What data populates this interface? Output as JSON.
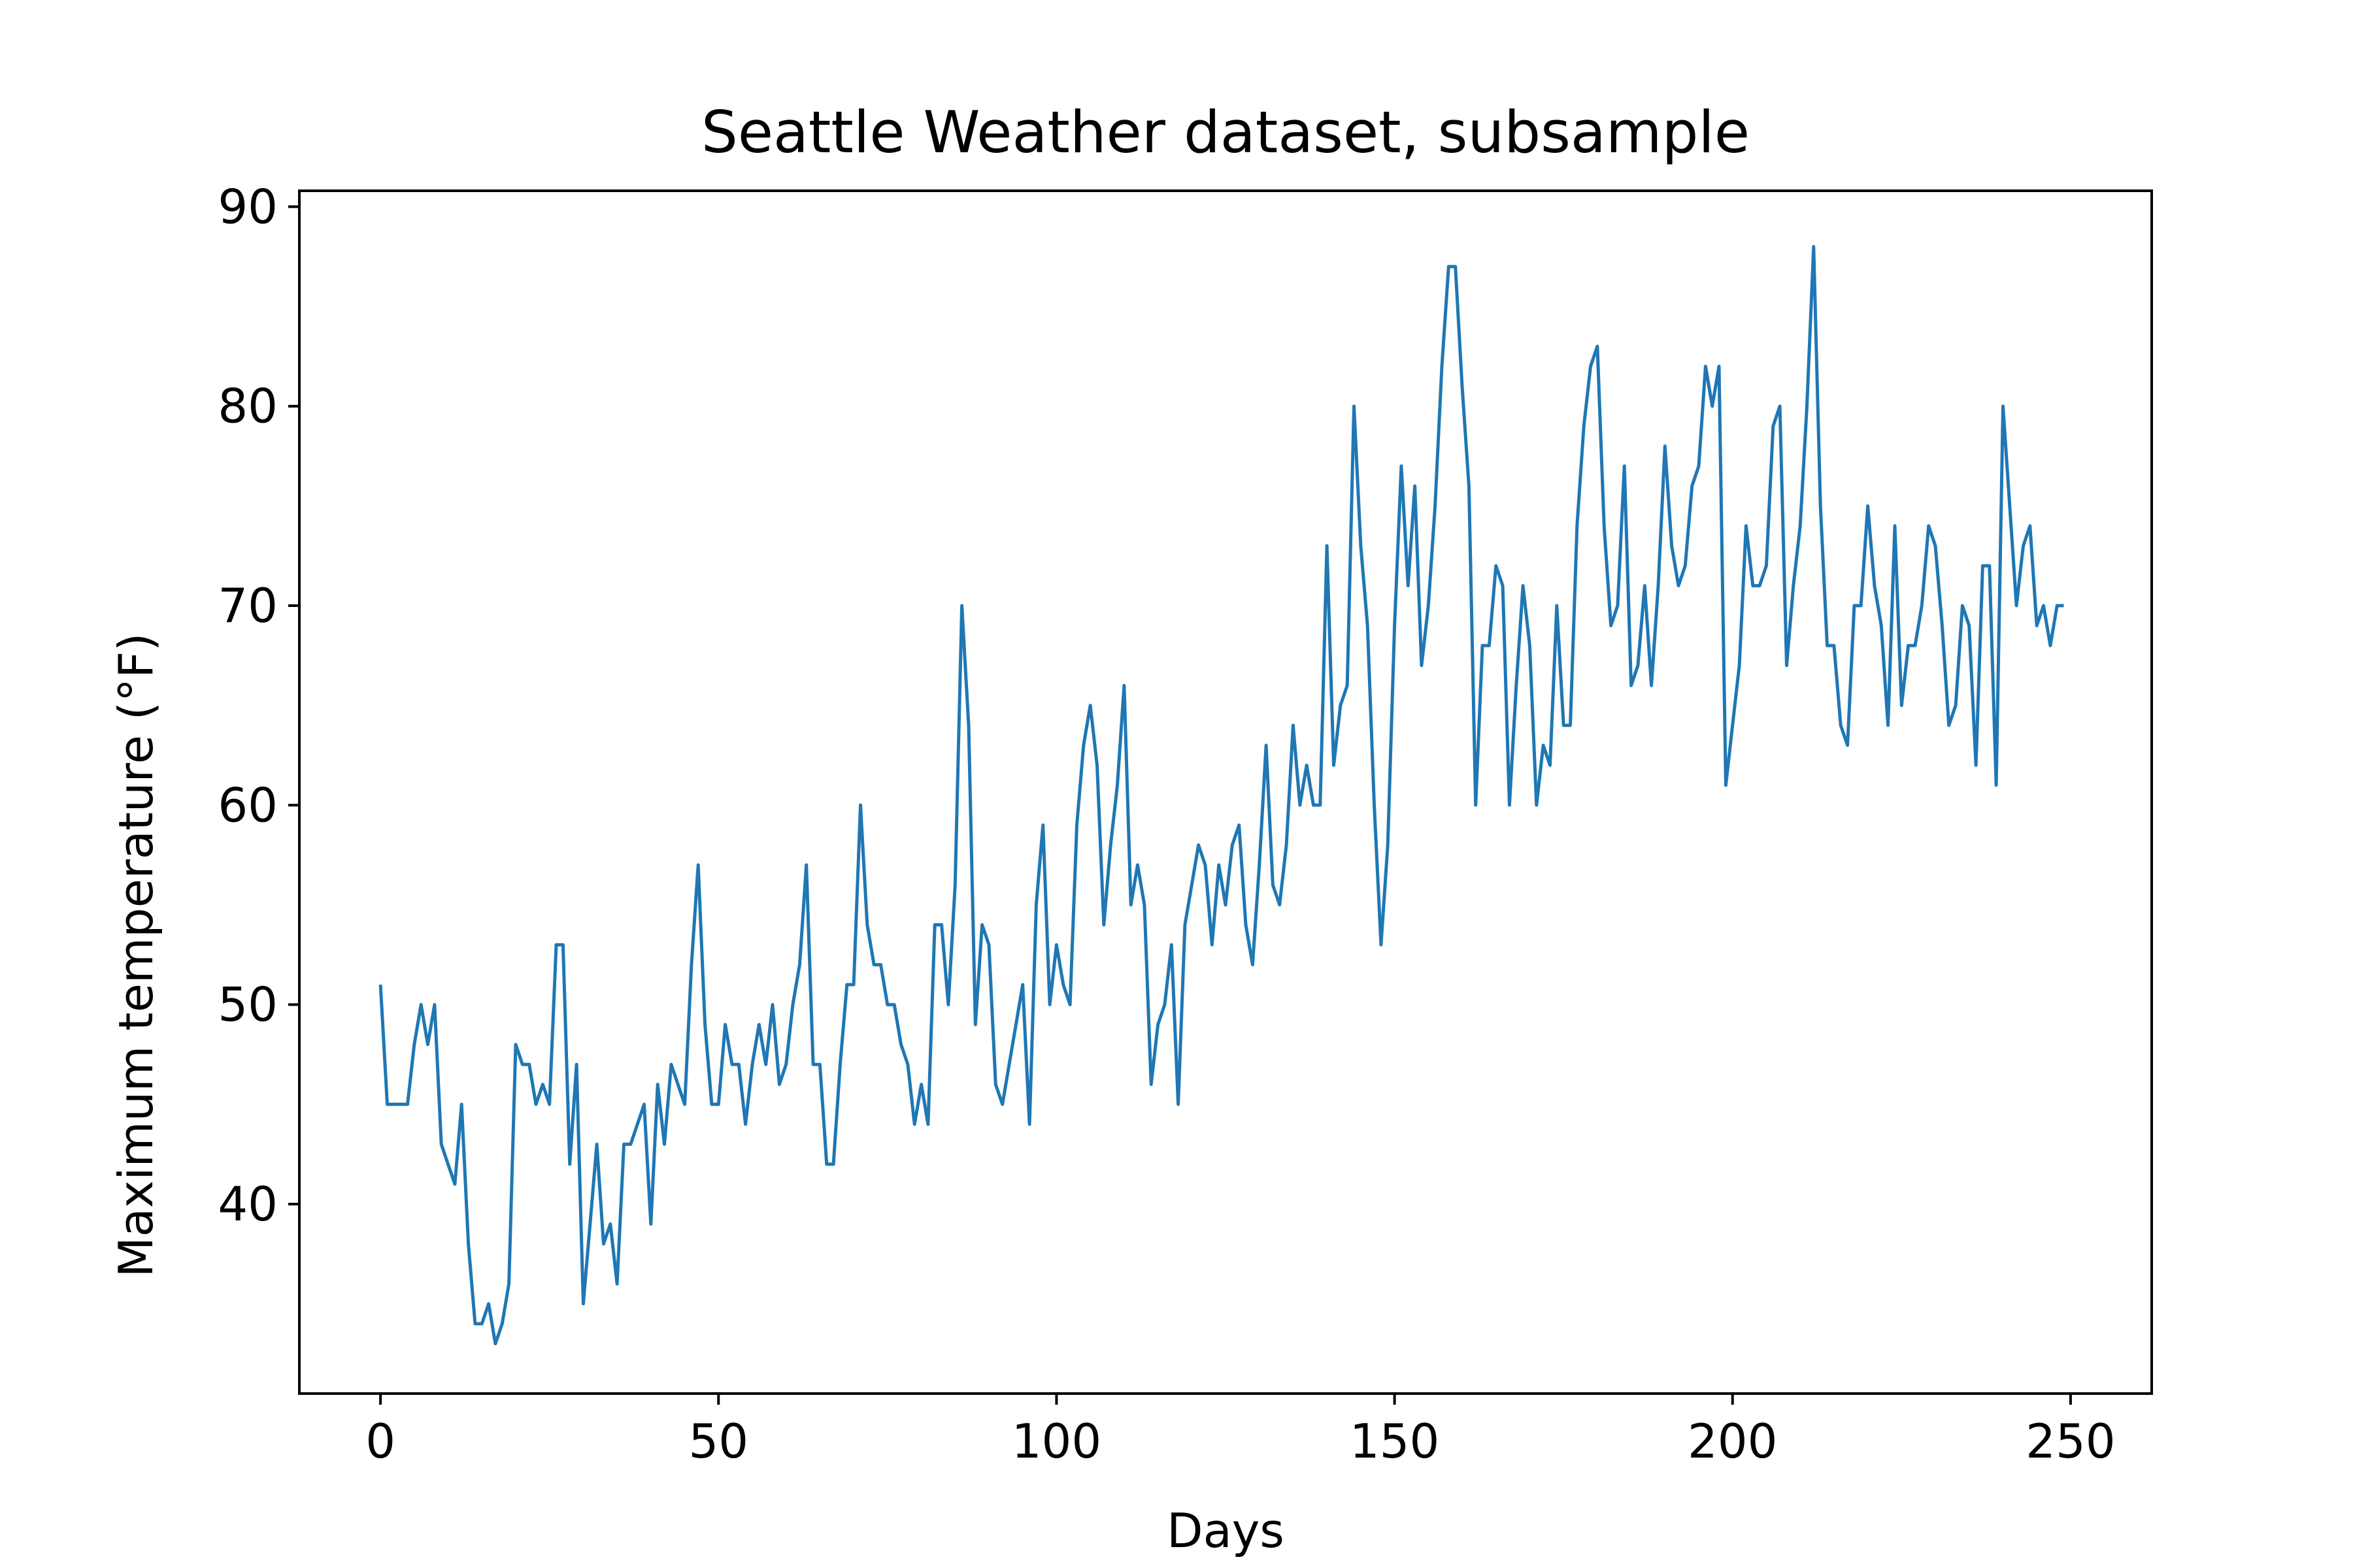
{
  "chart_data": {
    "type": "line",
    "title": "Seattle Weather dataset, subsample",
    "xlabel": "Days",
    "ylabel": "Maximum temperature (°F)",
    "xlim": [
      -12,
      262
    ],
    "ylim": [
      30.5,
      90.8
    ],
    "xticks": [
      0,
      50,
      100,
      150,
      200,
      250
    ],
    "yticks": [
      40,
      50,
      60,
      70,
      80,
      90
    ],
    "grid": false,
    "legend": "none",
    "line_color": "#1f77b4",
    "series": [
      {
        "x": [
          0,
          1,
          2,
          3,
          4,
          5,
          6,
          7,
          8,
          9,
          10,
          11,
          12,
          13,
          14,
          15,
          16,
          17,
          18,
          19,
          20,
          21,
          22,
          23,
          24,
          25,
          26,
          27,
          28,
          29,
          30,
          31,
          32,
          33,
          34,
          35,
          36,
          37,
          38,
          39,
          40,
          41,
          42,
          43,
          44,
          45,
          46,
          47,
          48,
          49,
          50,
          51,
          52,
          53,
          54,
          55,
          56,
          57,
          58,
          59,
          60,
          61,
          62,
          63,
          64,
          65,
          66,
          67,
          68,
          69,
          70,
          71,
          72,
          73,
          74,
          75,
          76,
          77,
          78,
          79,
          80,
          81,
          82,
          83,
          84,
          85,
          86,
          87,
          88,
          89,
          90,
          91,
          92,
          93,
          94,
          95,
          96,
          97,
          98,
          99,
          100,
          101,
          102,
          103,
          104,
          105,
          106,
          107,
          108,
          109,
          110,
          111,
          112,
          113,
          114,
          115,
          116,
          117,
          118,
          119,
          120,
          121,
          122,
          123,
          124,
          125,
          126,
          127,
          128,
          129,
          130,
          131,
          132,
          133,
          134,
          135,
          136,
          137,
          138,
          139,
          140,
          141,
          142,
          143,
          144,
          145,
          146,
          147,
          148,
          149,
          150,
          151,
          152,
          153,
          154,
          155,
          156,
          157,
          158,
          159,
          160,
          161,
          162,
          163,
          164,
          165,
          166,
          167,
          168,
          169,
          170,
          171,
          172,
          173,
          174,
          175,
          176,
          177,
          178,
          179,
          180,
          181,
          182,
          183,
          184,
          185,
          186,
          187,
          188,
          189,
          190,
          191,
          192,
          193,
          194,
          195,
          196,
          197,
          198,
          199,
          200,
          201,
          202,
          203,
          204,
          205,
          206,
          207,
          208,
          209,
          210,
          211,
          212,
          213,
          214,
          215,
          216,
          217,
          218,
          219,
          220,
          221,
          222,
          223,
          224,
          225,
          226,
          227,
          228,
          229,
          230,
          231,
          232,
          233,
          234,
          235,
          236,
          237,
          238,
          239,
          240,
          241,
          242,
          243,
          244,
          245,
          246,
          247,
          248,
          249
        ],
        "y": [
          51,
          45,
          45,
          45,
          45,
          48,
          50,
          48,
          50,
          43,
          42,
          41,
          45,
          38,
          34,
          34,
          35,
          33,
          34,
          36,
          48,
          47,
          47,
          45,
          46,
          45,
          53,
          53,
          42,
          47,
          35,
          39,
          43,
          38,
          39,
          36,
          43,
          43,
          44,
          45,
          39,
          46,
          43,
          47,
          46,
          45,
          52,
          57,
          49,
          45,
          45,
          49,
          47,
          47,
          44,
          47,
          49,
          47,
          50,
          46,
          47,
          50,
          52,
          57,
          47,
          47,
          42,
          42,
          47,
          51,
          51,
          60,
          54,
          52,
          52,
          50,
          50,
          48,
          47,
          44,
          46,
          44,
          54,
          54,
          50,
          56,
          70,
          64,
          49,
          54,
          53,
          46,
          45,
          47,
          49,
          51,
          44,
          55,
          59,
          50,
          53,
          51,
          50,
          59,
          63,
          65,
          62,
          54,
          58,
          61,
          66,
          55,
          57,
          55,
          46,
          49,
          50,
          53,
          45,
          54,
          56,
          58,
          57,
          53,
          57,
          55,
          58,
          59,
          54,
          52,
          57,
          63,
          56,
          55,
          58,
          64,
          60,
          62,
          60,
          60,
          73,
          62,
          65,
          66,
          80,
          73,
          69,
          60,
          53,
          58,
          69,
          77,
          71,
          76,
          67,
          70,
          75,
          82,
          87,
          87,
          81,
          76,
          60,
          68,
          68,
          72,
          71,
          60,
          66,
          71,
          68,
          60,
          63,
          62,
          70,
          64,
          64,
          74,
          79,
          82,
          83,
          74,
          69,
          70,
          77,
          66,
          67,
          71,
          66,
          71,
          78,
          73,
          71,
          72,
          76,
          77,
          82,
          80,
          82,
          61,
          64,
          67,
          74,
          71,
          71,
          72,
          79,
          80,
          67,
          71,
          74,
          80,
          88,
          75,
          68,
          68,
          64,
          63,
          70,
          70,
          75,
          71,
          69,
          64,
          74,
          65,
          68,
          68,
          70,
          74,
          73,
          69,
          64,
          65,
          70,
          69,
          62,
          72,
          72,
          61,
          80,
          75,
          70,
          73,
          74,
          69,
          70,
          68,
          70,
          70
        ]
      }
    ]
  }
}
